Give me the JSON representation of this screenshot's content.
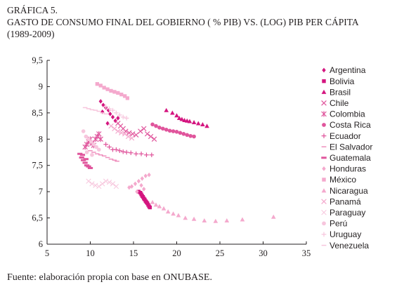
{
  "header": {
    "label": "GRÁFICA 5.",
    "title": "GASTO DE CONSUMO FINAL DEL GOBIERNO ( % PIB) VS. (LOG) PIB PER CÁPITA",
    "period": "(1989-2009)"
  },
  "source": "Fuente: elaboración propia con base en ONUBASE.",
  "chart_data": {
    "type": "scatter",
    "title": "GASTO DE CONSUMO FINAL DEL GOBIERNO ( % PIB) VS. (LOG) PIB PER CÁPITA",
    "xlabel": "",
    "ylabel": "",
    "xlim": [
      5,
      35
    ],
    "ylim": [
      6,
      9.5
    ],
    "x_ticks": [
      "5",
      "10",
      "15",
      "20",
      "25",
      "30",
      "35"
    ],
    "y_ticks": [
      "6",
      "6,5",
      "7",
      "7,5",
      "8",
      "8,5",
      "9",
      "9,5"
    ],
    "grid": false,
    "legend_position": "right",
    "series": [
      {
        "name": "Argentina",
        "marker": "diamond",
        "color": "#d4157f",
        "x": [
          11.2,
          11.5,
          11.8,
          12.1,
          12.3,
          12.6,
          12.9,
          13.2,
          11.4,
          12.0
        ],
        "y": [
          8.72,
          8.65,
          8.6,
          8.55,
          8.48,
          8.42,
          8.35,
          8.4,
          8.52,
          8.3
        ]
      },
      {
        "name": "Bolivia",
        "marker": "square",
        "color": "#d4157f",
        "x": [
          15.6,
          15.8,
          15.9,
          16.0,
          16.1,
          16.2,
          16.3,
          16.4,
          16.5,
          16.6,
          16.7,
          16.8,
          16.9
        ],
        "y": [
          7.0,
          6.98,
          6.95,
          6.92,
          6.9,
          6.87,
          6.85,
          6.82,
          6.8,
          6.78,
          6.75,
          6.72,
          6.7
        ]
      },
      {
        "name": "Brasil",
        "marker": "triangle",
        "color": "#d4157f",
        "x": [
          18.8,
          19.5,
          20.0,
          20.3,
          20.6,
          20.9,
          21.2,
          21.5,
          22.0,
          22.5,
          23.0,
          23.5
        ],
        "y": [
          8.55,
          8.5,
          8.45,
          8.4,
          8.38,
          8.36,
          8.35,
          8.34,
          8.32,
          8.3,
          8.28,
          8.25
        ]
      },
      {
        "name": "Chile",
        "marker": "cross",
        "color": "#e0559c",
        "x": [
          13.2,
          13.5,
          13.8,
          14.1,
          14.5,
          14.9,
          15.3,
          15.8,
          16.2,
          16.6,
          17.0,
          17.4
        ],
        "y": [
          8.3,
          8.25,
          8.2,
          8.15,
          8.12,
          8.1,
          8.08,
          8.15,
          8.2,
          8.1,
          8.05,
          8.0
        ]
      },
      {
        "name": "Colombia",
        "marker": "star",
        "color": "#e0559c",
        "x": [
          9.4,
          9.6,
          9.8,
          10.0,
          10.2,
          10.4,
          10.6,
          10.8,
          11.0,
          11.2
        ],
        "y": [
          7.85,
          7.9,
          7.95,
          8.0,
          7.92,
          7.88,
          8.0,
          8.05,
          8.1,
          8.0
        ]
      },
      {
        "name": "Costa Rica",
        "marker": "circle",
        "color": "#e0559c",
        "x": [
          17.2,
          17.6,
          18.0,
          18.4,
          18.8,
          19.2,
          19.6,
          20.0,
          20.4,
          20.8,
          21.2,
          21.6,
          22.0
        ],
        "y": [
          8.28,
          8.25,
          8.22,
          8.2,
          8.18,
          8.16,
          8.15,
          8.14,
          8.12,
          8.1,
          8.08,
          8.06,
          8.05
        ]
      },
      {
        "name": "Ecuador",
        "marker": "plus",
        "color": "#e0559c",
        "x": [
          11.8,
          12.2,
          12.6,
          13.0,
          13.4,
          13.8,
          14.2,
          14.7,
          15.3,
          15.9,
          16.5,
          17.1
        ],
        "y": [
          7.9,
          7.85,
          7.8,
          7.8,
          7.78,
          7.76,
          7.75,
          7.74,
          7.72,
          7.72,
          7.7,
          7.7
        ]
      },
      {
        "name": "El Salvador",
        "marker": "dash",
        "color": "#ef8fbd",
        "x": [
          10.0,
          10.4,
          10.8,
          11.2,
          11.6,
          12.0,
          12.4,
          12.8,
          13.1
        ],
        "y": [
          7.78,
          7.75,
          7.72,
          7.7,
          7.68,
          7.65,
          7.62,
          7.6,
          7.58
        ]
      },
      {
        "name": "Guatemala",
        "marker": "hbar",
        "color": "#e0559c",
        "x": [
          8.8,
          9.0,
          9.2,
          9.4,
          9.6,
          9.8,
          10.0,
          9.1,
          9.5
        ],
        "y": [
          7.72,
          7.65,
          7.6,
          7.55,
          7.5,
          7.48,
          7.45,
          7.7,
          7.62
        ]
      },
      {
        "name": "Honduras",
        "marker": "diamond",
        "color": "#f4a9cd",
        "x": [
          14.8,
          15.2,
          15.6,
          16.0,
          16.4,
          16.8,
          15.4,
          16.2,
          14.5,
          15.9
        ],
        "y": [
          7.1,
          7.15,
          7.2,
          7.25,
          7.3,
          7.32,
          7.0,
          7.05,
          7.08,
          7.12
        ]
      },
      {
        "name": "México",
        "marker": "square",
        "color": "#f4a9cd",
        "x": [
          10.8,
          11.2,
          11.6,
          12.0,
          12.4,
          12.8,
          13.2,
          13.6,
          14.0,
          14.3
        ],
        "y": [
          9.05,
          9.02,
          8.98,
          8.95,
          8.92,
          8.9,
          8.88,
          8.85,
          8.82,
          8.78
        ]
      },
      {
        "name": "Nicaragua",
        "marker": "triangle",
        "color": "#f4a9cd",
        "x": [
          17.2,
          17.6,
          18.0,
          18.5,
          19.0,
          19.6,
          20.2,
          21.0,
          22.0,
          23.2,
          24.5,
          25.8,
          27.6,
          31.2
        ],
        "y": [
          6.8,
          6.75,
          6.72,
          6.68,
          6.62,
          6.58,
          6.55,
          6.5,
          6.48,
          6.45,
          6.44,
          6.45,
          6.47,
          6.52
        ]
      },
      {
        "name": "Panamá",
        "marker": "cross",
        "color": "#f4a9cd",
        "x": [
          12.4,
          12.8,
          13.2,
          13.6,
          14.0,
          14.4,
          14.8
        ],
        "y": [
          8.25,
          8.2,
          8.15,
          8.12,
          8.1,
          8.05,
          8.02
        ]
      },
      {
        "name": "Paraguay",
        "marker": "x",
        "color": "#f7c6dd",
        "x": [
          9.8,
          10.2,
          10.6,
          11.0,
          11.4,
          11.8,
          12.2,
          12.6,
          13.0
        ],
        "y": [
          7.2,
          7.15,
          7.12,
          7.1,
          7.15,
          7.2,
          7.18,
          7.15,
          7.1
        ]
      },
      {
        "name": "Perú",
        "marker": "circle",
        "color": "#f7c6dd",
        "x": [
          9.2,
          9.5,
          9.8,
          10.1,
          10.4,
          10.7,
          11.0,
          9.6,
          10.2
        ],
        "y": [
          8.15,
          8.05,
          8.0,
          7.95,
          7.9,
          7.85,
          7.8,
          7.75,
          7.7
        ]
      },
      {
        "name": "Uruguay",
        "marker": "plus",
        "color": "#f7c6dd",
        "x": [
          11.8,
          12.2,
          12.6,
          13.0,
          13.4,
          13.8,
          14.2
        ],
        "y": [
          8.62,
          8.58,
          8.55,
          8.5,
          8.46,
          8.42,
          8.4
        ]
      },
      {
        "name": "Venezuela",
        "marker": "dash",
        "color": "#f7c6dd",
        "x": [
          9.4,
          9.8,
          10.2,
          10.6,
          11.0,
          11.4,
          11.8
        ],
        "y": [
          8.6,
          8.58,
          8.56,
          8.55,
          8.53,
          8.5,
          8.48
        ]
      }
    ]
  }
}
